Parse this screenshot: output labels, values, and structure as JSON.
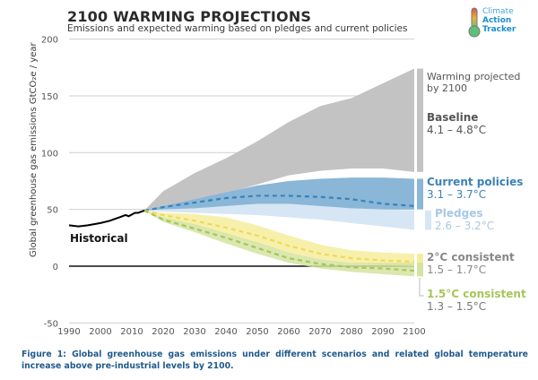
{
  "header": {
    "title": "2100 WARMING PROJECTIONS",
    "subtitle": "Emissions and expected warming based on pledges and current policies"
  },
  "logo": {
    "line1": "Climate",
    "line2": "Action",
    "line3": "Tracker"
  },
  "caption": "Figure 1: Global greenhouse gas emissions under different scenarios and related global temperature increase above pre-industrial levels by 2100.",
  "colors": {
    "baseline": "#c4c3c4",
    "current": "#8ab6d8",
    "current_line": "#3b82b8",
    "pledges": "#d6e6f4",
    "two": "#f6ed9c",
    "two_line": "#f0d85a",
    "onefive": "#d3e3a0",
    "onefive_line": "#a7c55a",
    "historical": "#000000"
  },
  "annotations": {
    "warming_header": "Warming projected by 2100",
    "baseline_label": "Baseline",
    "baseline_range": "4.1 – 4.8°C",
    "current_label": "Current policies",
    "current_range": "3.1 – 3.7°C",
    "pledges_label": "Pledges",
    "pledges_range": "2.6 – 3.2°C",
    "two_label": "2°C consistent",
    "two_range": "1.5 – 1.7°C",
    "onefive_label": "1.5°C consistent",
    "onefive_range": "1.3 – 1.5°C",
    "historical_label": "Historical"
  },
  "chart_data": {
    "type": "area",
    "title": "2100 WARMING PROJECTIONS",
    "subtitle": "Emissions and expected warming based on pledges and current policies",
    "xlabel": "",
    "ylabel": "Global greenhouse gas emissions GtCO₂e / year",
    "xlim": [
      1990,
      2100
    ],
    "ylim": [
      -50,
      200
    ],
    "x_ticks": [
      1990,
      2000,
      2010,
      2020,
      2030,
      2040,
      2050,
      2060,
      2070,
      2080,
      2090,
      2100
    ],
    "y_ticks": [
      -50,
      0,
      50,
      100,
      150,
      200
    ],
    "grid": true,
    "historical": {
      "name": "Historical",
      "x": [
        1990,
        1993,
        1996,
        2000,
        2003,
        2006,
        2008,
        2009,
        2011,
        2012,
        2014
      ],
      "y": [
        36,
        35,
        36,
        38,
        40,
        43,
        45,
        44,
        47,
        47,
        49
      ]
    },
    "bands": [
      {
        "name": "Baseline",
        "x": [
          2014,
          2020,
          2030,
          2040,
          2050,
          2060,
          2070,
          2080,
          2090,
          2100
        ],
        "upper": [
          49,
          66,
          82,
          95,
          110,
          127,
          141,
          148,
          161,
          174
        ],
        "lower": [
          49,
          52,
          58,
          64,
          72,
          80,
          84,
          86,
          86,
          83
        ]
      },
      {
        "name": "Current policies",
        "x": [
          2014,
          2020,
          2030,
          2040,
          2050,
          2060,
          2070,
          2080,
          2090,
          2100
        ],
        "upper": [
          49,
          53,
          59,
          65,
          71,
          75,
          77,
          78,
          78,
          77
        ],
        "lower": [
          49,
          50,
          51,
          53,
          55,
          55,
          53,
          51,
          50,
          50
        ],
        "median": [
          49,
          52,
          56,
          60,
          62,
          62,
          61,
          59,
          55,
          53
        ]
      },
      {
        "name": "Pledges",
        "x": [
          2014,
          2020,
          2030,
          2040,
          2050,
          2060,
          2070,
          2080,
          2090,
          2100
        ],
        "upper": [
          49,
          52,
          55,
          58,
          60,
          58,
          54,
          52,
          50,
          49
        ],
        "lower": [
          49,
          48,
          47,
          46,
          45,
          43,
          41,
          38,
          35,
          32
        ]
      },
      {
        "name": "2°C consistent",
        "x": [
          2014,
          2020,
          2030,
          2040,
          2050,
          2060,
          2070,
          2080,
          2090,
          2100
        ],
        "upper": [
          49,
          47,
          46,
          43,
          36,
          27,
          19,
          14,
          12,
          11
        ],
        "lower": [
          49,
          43,
          36,
          28,
          20,
          12,
          6,
          3,
          1,
          0
        ],
        "median": [
          49,
          45,
          40,
          34,
          27,
          18,
          11,
          7,
          5,
          4
        ]
      },
      {
        "name": "1.5°C consistent",
        "x": [
          2014,
          2020,
          2030,
          2040,
          2050,
          2060,
          2070,
          2080,
          2090,
          2100
        ],
        "upper": [
          49,
          43,
          37,
          29,
          21,
          12,
          6,
          3,
          3,
          3
        ],
        "lower": [
          49,
          39,
          30,
          20,
          11,
          3,
          -2,
          -5,
          -7,
          -9
        ],
        "median": [
          49,
          41,
          33,
          25,
          16,
          7,
          2,
          -1,
          -2,
          -4
        ]
      }
    ],
    "legend": [
      {
        "name": "Baseline",
        "range": "4.1 – 4.8°C"
      },
      {
        "name": "Current policies",
        "range": "3.1 – 3.7°C"
      },
      {
        "name": "Pledges",
        "range": "2.6 – 3.2°C"
      },
      {
        "name": "2°C consistent",
        "range": "1.5 – 1.7°C"
      },
      {
        "name": "1.5°C consistent",
        "range": "1.3 – 1.5°C"
      }
    ],
    "legend_position": "right"
  }
}
